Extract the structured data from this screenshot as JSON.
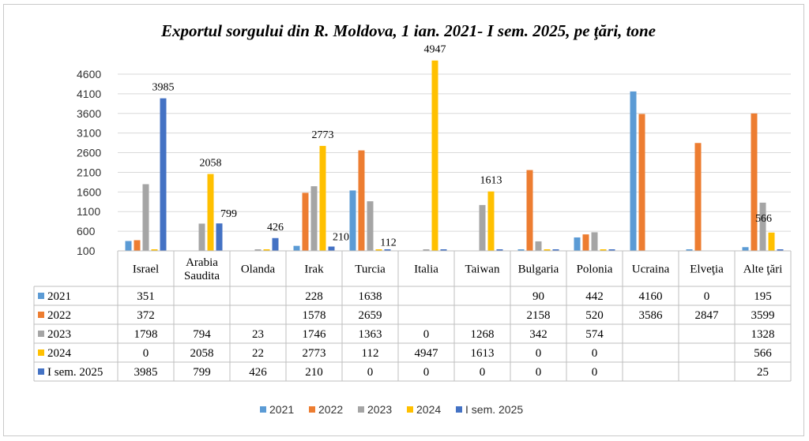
{
  "chart_data": {
    "type": "bar",
    "title": "Exportul sorgului din R. Moldova, 1 ian. 2021- I sem. 2025, pe ţări, tone",
    "categories": [
      [
        "Israel"
      ],
      [
        "Arabia",
        "Saudita"
      ],
      [
        "Olanda"
      ],
      [
        "Irak"
      ],
      [
        "Turcia"
      ],
      [
        "Italia"
      ],
      [
        "Taiwan"
      ],
      [
        "Bulgaria"
      ],
      [
        "Polonia"
      ],
      [
        "Ucraina"
      ],
      [
        "Elveţia"
      ],
      [
        "Alte ţări"
      ]
    ],
    "ylim": [
      100,
      4800
    ],
    "yticks": [
      100,
      600,
      1100,
      1600,
      2100,
      2600,
      3100,
      3600,
      4100,
      4600
    ],
    "series": [
      {
        "name": "2021",
        "color": "#5b9bd5",
        "values": [
          351,
          null,
          null,
          228,
          1638,
          null,
          null,
          90,
          442,
          4160,
          0,
          195
        ]
      },
      {
        "name": "2022",
        "color": "#ed7d31",
        "values": [
          372,
          null,
          null,
          1578,
          2659,
          null,
          null,
          2158,
          520,
          3586,
          2847,
          3599
        ]
      },
      {
        "name": "2023",
        "color": "#a5a5a5",
        "values": [
          1798,
          794,
          23,
          1746,
          1363,
          0,
          1268,
          342,
          574,
          null,
          null,
          1328
        ]
      },
      {
        "name": "2024",
        "color": "#ffc000",
        "values": [
          0,
          2058,
          22,
          2773,
          112,
          4947,
          1613,
          0,
          0,
          null,
          null,
          566
        ]
      },
      {
        "name": "I sem. 2025",
        "color": "#4472c4",
        "values": [
          3985,
          799,
          426,
          210,
          0,
          0,
          0,
          0,
          0,
          null,
          null,
          25
        ]
      }
    ],
    "data_labels": [
      {
        "category": "Israel",
        "series": "I sem. 2025",
        "text": "3985"
      },
      {
        "category": "Arabia Saudita",
        "series": "2024",
        "text": "2058"
      },
      {
        "category": "Arabia Saudita",
        "series": "I sem. 2025",
        "text": "799"
      },
      {
        "category": "Olanda",
        "series": "I sem. 2025",
        "text": "426"
      },
      {
        "category": "Irak",
        "series": "2024",
        "text": "2773"
      },
      {
        "category": "Irak",
        "series": "I sem. 2025",
        "text": "210"
      },
      {
        "category": "Turcia",
        "series": "2024",
        "text": "112"
      },
      {
        "category": "Italia",
        "series": "2024",
        "text": "4947"
      },
      {
        "category": "Taiwan",
        "series": "2024",
        "text": "1613"
      },
      {
        "category": "Alte ţări",
        "series": "2024",
        "text": "566"
      }
    ],
    "legend_position": "bottom",
    "grid": true,
    "data_table": true
  }
}
